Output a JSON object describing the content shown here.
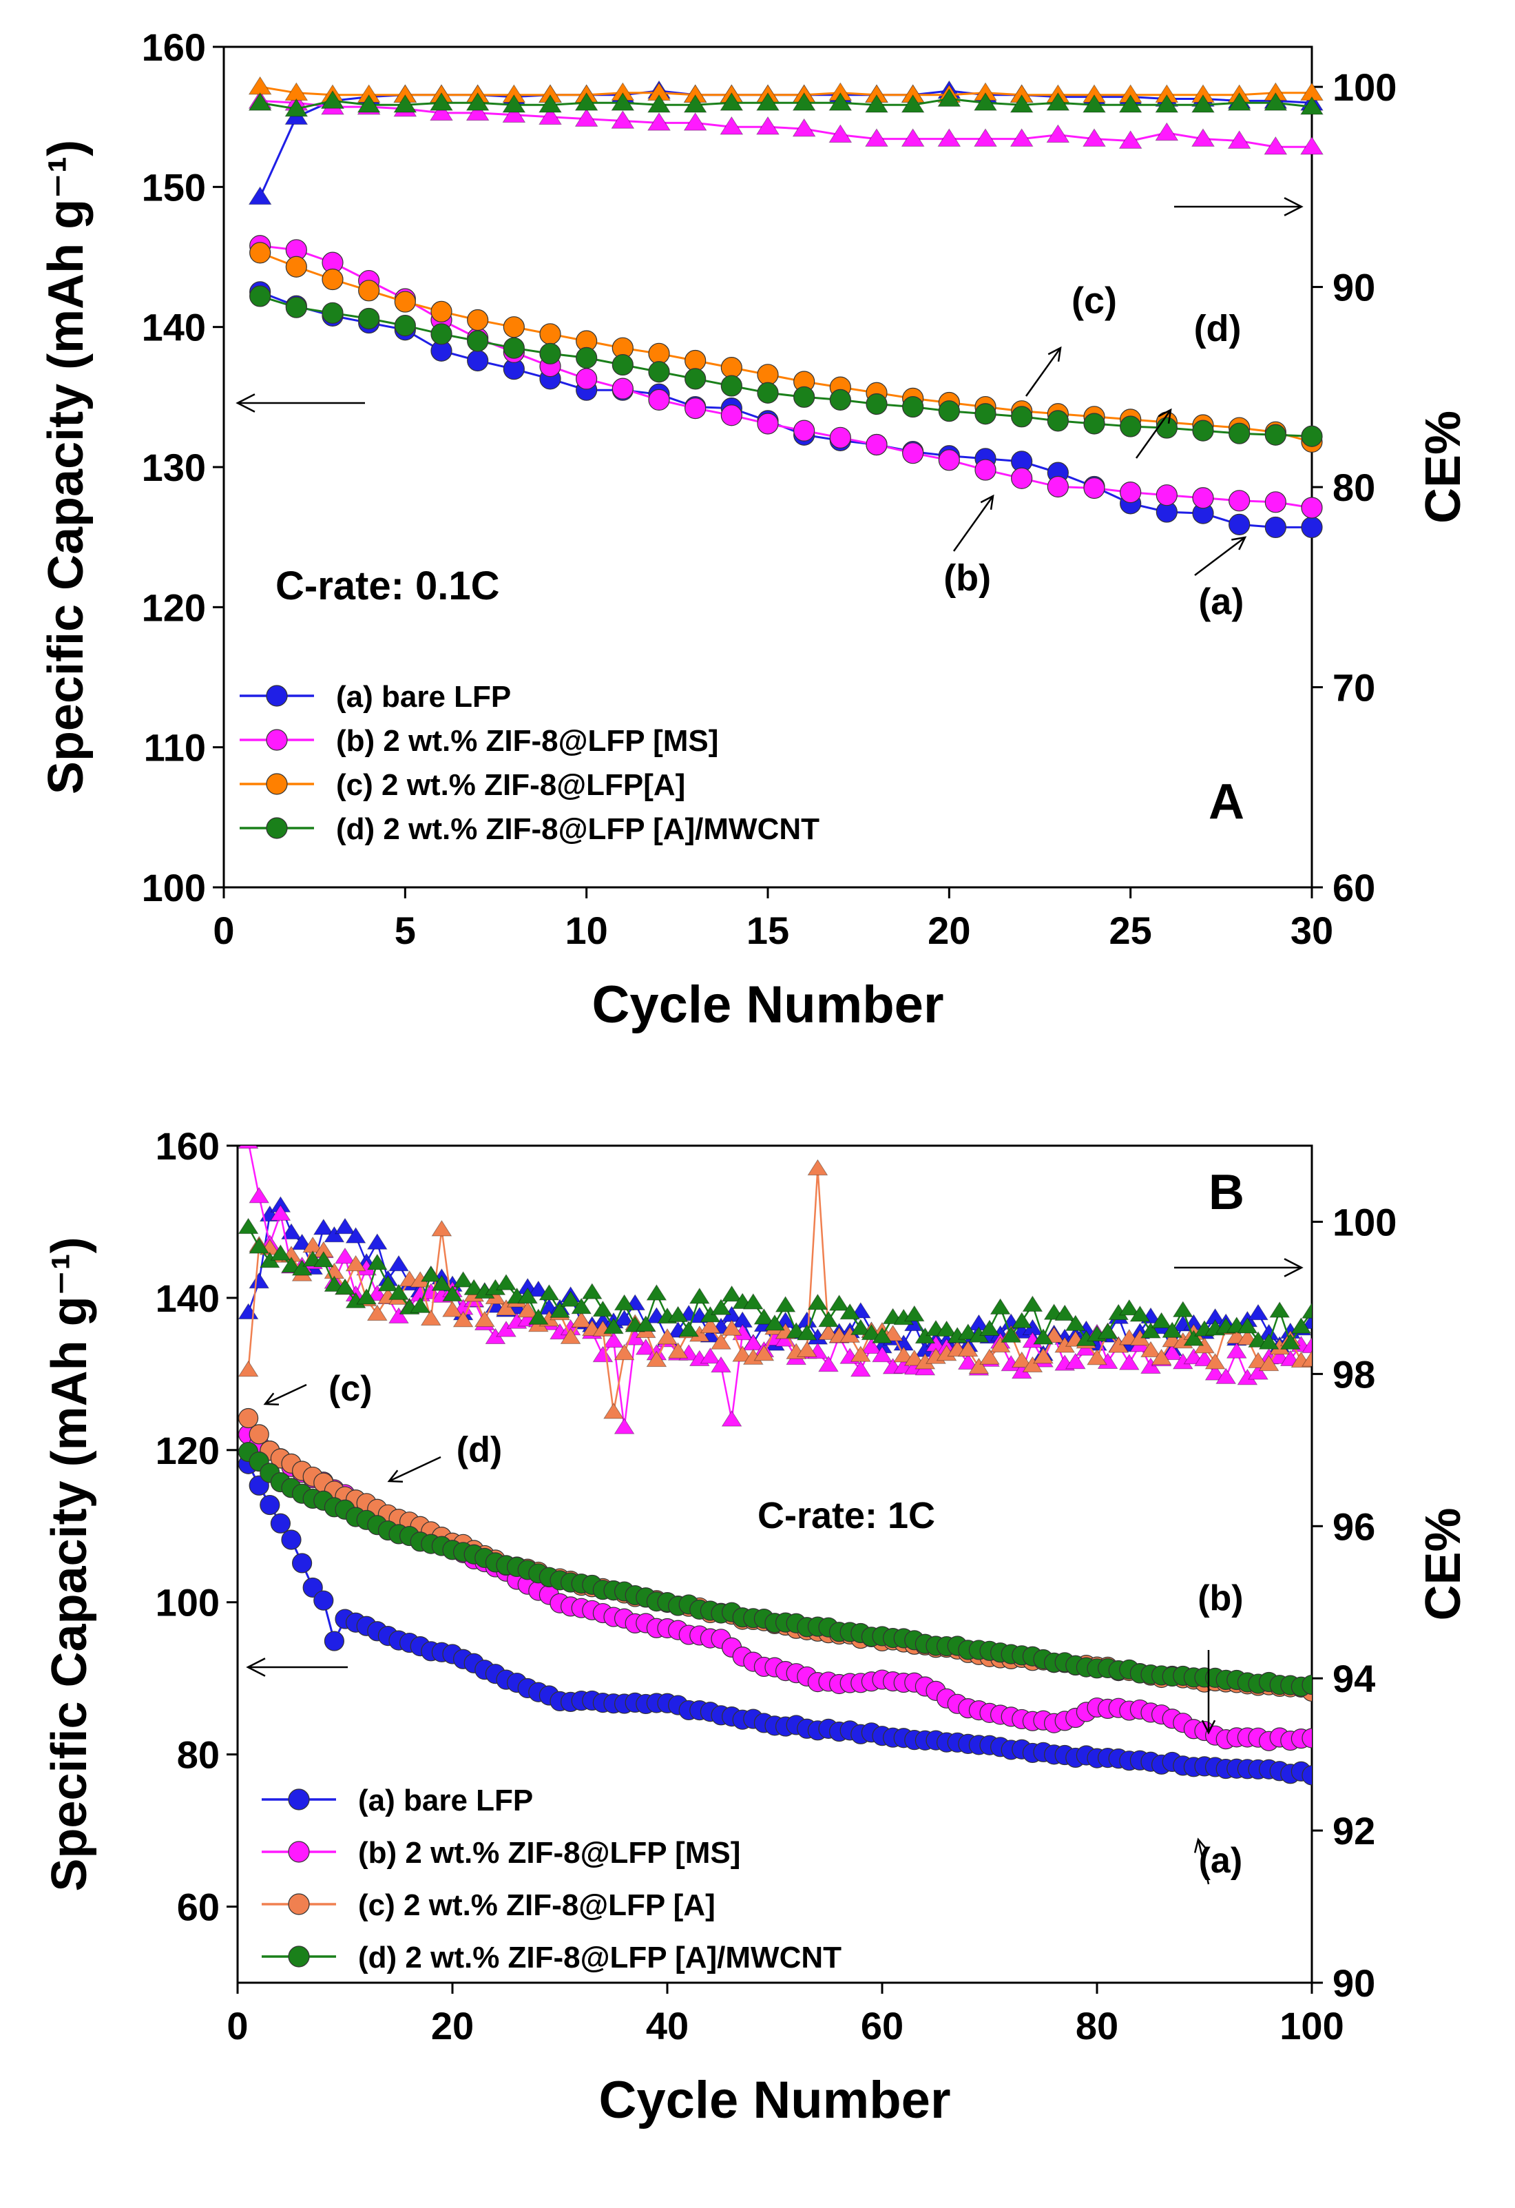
{
  "chart_data": [
    {
      "type": "line",
      "panel_label": "A",
      "annotation_rate": "C-rate: 0.1C",
      "xlabel": "Cycle Number",
      "ylabel": "Specific Capacity (mAh g⁻¹)",
      "y2label": "CE%",
      "xlim": [
        0,
        30
      ],
      "xticks": [
        0,
        5,
        10,
        15,
        20,
        25,
        30
      ],
      "ylim": [
        100,
        160
      ],
      "yticks": [
        100,
        110,
        120,
        130,
        140,
        150,
        160
      ],
      "y2lim": [
        60,
        102
      ],
      "y2ticks": [
        60,
        70,
        80,
        90,
        100
      ],
      "curve_labels": [
        {
          "text": "(a)",
          "x": 27.5,
          "y": 119.5
        },
        {
          "text": "(b)",
          "x": 20.5,
          "y": 121.2
        },
        {
          "text": "(c)",
          "x": 24.0,
          "y": 141.0
        },
        {
          "text": "(d)",
          "x": 27.4,
          "y": 139.0
        }
      ],
      "series": [
        {
          "name": "(a) bare LFP",
          "color": "#1f1fe6",
          "capacity": [
            142.5,
            141.5,
            140.8,
            140.3,
            139.8,
            138.3,
            137.6,
            137.0,
            136.3,
            135.5,
            135.5,
            135.2,
            134.3,
            134.2,
            133.3,
            132.3,
            131.9,
            131.6,
            131.1,
            130.8,
            130.6,
            130.4,
            129.6,
            128.6,
            127.4,
            126.8,
            126.7,
            125.9,
            125.7,
            125.7
          ],
          "ce": [
            94.5,
            98.5,
            99.3,
            99.5,
            99.6,
            99.6,
            99.6,
            99.5,
            99.6,
            99.6,
            99.6,
            99.8,
            99.6,
            99.6,
            99.6,
            99.6,
            99.6,
            99.6,
            99.6,
            99.8,
            99.6,
            99.6,
            99.5,
            99.5,
            99.5,
            99.4,
            99.4,
            99.3,
            99.3,
            99.2
          ]
        },
        {
          "name": "(b) 2 wt.% ZIF-8@LFP [MS]",
          "color": "#ff1aff",
          "capacity": [
            145.8,
            145.5,
            144.6,
            143.3,
            142.0,
            140.5,
            139.2,
            138.2,
            137.2,
            136.3,
            135.6,
            134.8,
            134.2,
            133.7,
            133.1,
            132.6,
            132.1,
            131.6,
            131.0,
            130.5,
            129.8,
            129.2,
            128.6,
            128.5,
            128.2,
            128.0,
            127.8,
            127.6,
            127.5,
            127.1
          ],
          "ce": [
            99.3,
            99.2,
            99.0,
            99.0,
            98.9,
            98.7,
            98.7,
            98.6,
            98.5,
            98.4,
            98.3,
            98.2,
            98.2,
            98.0,
            98.0,
            97.9,
            97.6,
            97.4,
            97.4,
            97.4,
            97.4,
            97.4,
            97.6,
            97.4,
            97.3,
            97.7,
            97.4,
            97.3,
            97.0,
            97.0
          ]
        },
        {
          "name": "(c) 2 wt.% ZIF-8@LFP[A]",
          "color": "#ff8000",
          "capacity": [
            145.3,
            144.3,
            143.4,
            142.6,
            141.8,
            141.1,
            140.5,
            140.0,
            139.5,
            139.0,
            138.5,
            138.1,
            137.6,
            137.1,
            136.6,
            136.1,
            135.7,
            135.3,
            134.9,
            134.6,
            134.3,
            134.0,
            133.8,
            133.6,
            133.4,
            133.2,
            133.0,
            132.8,
            132.5,
            131.8
          ],
          "ce": [
            100.0,
            99.7,
            99.6,
            99.6,
            99.6,
            99.6,
            99.6,
            99.6,
            99.6,
            99.6,
            99.7,
            99.7,
            99.6,
            99.6,
            99.6,
            99.6,
            99.7,
            99.6,
            99.6,
            99.6,
            99.7,
            99.6,
            99.6,
            99.6,
            99.6,
            99.6,
            99.6,
            99.6,
            99.7,
            99.7
          ]
        },
        {
          "name": "(d) 2 wt.% ZIF-8@LFP [A]/MWCNT",
          "color": "#1a801a",
          "capacity": [
            142.2,
            141.4,
            141.0,
            140.6,
            140.1,
            139.5,
            139.0,
            138.5,
            138.1,
            137.8,
            137.3,
            136.8,
            136.3,
            135.8,
            135.3,
            135.0,
            134.8,
            134.5,
            134.3,
            134.0,
            133.8,
            133.6,
            133.3,
            133.1,
            132.9,
            132.8,
            132.6,
            132.4,
            132.3,
            132.2
          ],
          "ce": [
            99.2,
            98.9,
            99.3,
            99.1,
            99.1,
            99.2,
            99.2,
            99.1,
            99.1,
            99.2,
            99.2,
            99.1,
            99.1,
            99.2,
            99.2,
            99.2,
            99.2,
            99.1,
            99.1,
            99.4,
            99.2,
            99.1,
            99.2,
            99.1,
            99.1,
            99.1,
            99.1,
            99.2,
            99.2,
            99.0
          ]
        }
      ]
    },
    {
      "type": "line",
      "panel_label": "B",
      "annotation_rate": "C-rate: 1C",
      "xlabel": "Cycle Number",
      "ylabel": "Specific Capacity (mAh g⁻¹)",
      "y2label": "CE%",
      "xlim": [
        0,
        100
      ],
      "xticks": [
        0,
        20,
        40,
        60,
        80,
        100
      ],
      "ylim": [
        50,
        160
      ],
      "yticks": [
        60,
        80,
        100,
        120,
        140,
        160
      ],
      "y2lim": [
        90,
        101
      ],
      "y2ticks": [
        90,
        92,
        94,
        96,
        98,
        100
      ],
      "curve_labels": [
        {
          "text": "(a)",
          "x": 91.5,
          "y": 64.5
        },
        {
          "text": "(b)",
          "x": 91.5,
          "y": 99.0
        },
        {
          "text": "(c)",
          "x": 10.5,
          "y": 126.5
        },
        {
          "text": "(d)",
          "x": 22.5,
          "y": 118.5
        }
      ],
      "series": [
        {
          "name": "(a) bare LFP",
          "color": "#1f1fe6"
        },
        {
          "name": "(b) 2 wt.% ZIF-8@LFP [MS]",
          "color": "#ff1aff"
        },
        {
          "name": "(c) 2 wt.% ZIF-8@LFP [A]",
          "color": "#f08050"
        },
        {
          "name": "(d) 2 wt.% ZIF-8@LFP [A]/MWCNT",
          "color": "#1a801a"
        }
      ],
      "capacity_knots": {
        "(a)": [
          [
            1,
            118
          ],
          [
            3,
            113
          ],
          [
            5,
            108
          ],
          [
            7,
            102
          ],
          [
            8,
            100
          ],
          [
            9,
            95
          ],
          [
            10,
            98
          ],
          [
            15,
            95
          ],
          [
            20,
            93
          ],
          [
            25,
            90
          ],
          [
            30,
            87
          ],
          [
            40,
            86.5
          ],
          [
            50,
            84
          ],
          [
            60,
            82.5
          ],
          [
            70,
            81
          ],
          [
            80,
            79.5
          ],
          [
            90,
            78.5
          ],
          [
            100,
            77.5
          ]
        ],
        "(b)": [
          [
            1,
            122
          ],
          [
            5,
            118
          ],
          [
            10,
            114
          ],
          [
            15,
            110
          ],
          [
            20,
            107
          ],
          [
            25,
            104
          ],
          [
            30,
            100
          ],
          [
            35,
            98
          ],
          [
            40,
            96.5
          ],
          [
            45,
            95
          ],
          [
            48,
            92
          ],
          [
            52,
            90.5
          ],
          [
            56,
            89
          ],
          [
            60,
            90
          ],
          [
            64,
            89
          ],
          [
            68,
            86
          ],
          [
            72,
            85
          ],
          [
            76,
            84
          ],
          [
            80,
            86
          ],
          [
            84,
            86
          ],
          [
            88,
            84
          ],
          [
            92,
            82
          ],
          [
            96,
            82
          ],
          [
            100,
            82
          ]
        ],
        "(c)": [
          [
            1,
            124
          ],
          [
            3,
            120
          ],
          [
            5,
            118
          ],
          [
            10,
            114
          ],
          [
            15,
            111
          ],
          [
            20,
            108
          ],
          [
            25,
            105
          ],
          [
            30,
            103
          ],
          [
            40,
            100
          ],
          [
            50,
            97
          ],
          [
            60,
            95
          ],
          [
            70,
            93
          ],
          [
            80,
            91.5
          ],
          [
            90,
            89.5
          ],
          [
            100,
            88.5
          ]
        ],
        "(d)": [
          [
            1,
            120
          ],
          [
            3,
            117
          ],
          [
            5,
            115
          ],
          [
            10,
            112
          ],
          [
            15,
            109
          ],
          [
            20,
            107
          ],
          [
            25,
            105
          ],
          [
            30,
            103
          ],
          [
            40,
            100
          ],
          [
            50,
            97.5
          ],
          [
            60,
            95.5
          ],
          [
            70,
            93.5
          ],
          [
            80,
            91.5
          ],
          [
            90,
            90
          ],
          [
            100,
            89
          ]
        ]
      },
      "ce_knots": {
        "(a)": [
          [
            1,
            98.7
          ],
          [
            3,
            100.0
          ],
          [
            6,
            99.6
          ],
          [
            10,
            99.7
          ],
          [
            15,
            99.4
          ],
          [
            20,
            99.0
          ],
          [
            30,
            98.9
          ],
          [
            40,
            98.6
          ],
          [
            50,
            98.6
          ],
          [
            60,
            98.6
          ],
          [
            70,
            98.5
          ],
          [
            80,
            98.5
          ],
          [
            90,
            98.6
          ],
          [
            100,
            98.5
          ]
        ],
        "(b)": [
          [
            1,
            101
          ],
          [
            2,
            100.2
          ],
          [
            4,
            99.8
          ],
          [
            8,
            99.4
          ],
          [
            15,
            99.0
          ],
          [
            25,
            98.7
          ],
          [
            35,
            98.4
          ],
          [
            45,
            98.3
          ],
          [
            60,
            98.3
          ],
          [
            70,
            98.2
          ],
          [
            80,
            98.3
          ],
          [
            90,
            98.1
          ],
          [
            100,
            98.3
          ]
        ],
        "(c)": [
          [
            1,
            98.0
          ],
          [
            2,
            99.8
          ],
          [
            5,
            99.5
          ],
          [
            10,
            99.2
          ],
          [
            20,
            98.9
          ],
          [
            30,
            98.6
          ],
          [
            40,
            98.4
          ],
          [
            50,
            98.4
          ],
          [
            60,
            98.4
          ],
          [
            70,
            98.3
          ],
          [
            80,
            98.4
          ],
          [
            90,
            98.4
          ],
          [
            100,
            98.2
          ]
        ],
        "(d)": [
          [
            1,
            99.6
          ],
          [
            5,
            99.4
          ],
          [
            10,
            99.3
          ],
          [
            20,
            99.0
          ],
          [
            30,
            98.9
          ],
          [
            40,
            98.8
          ],
          [
            50,
            98.8
          ],
          [
            60,
            98.7
          ],
          [
            70,
            98.7
          ],
          [
            80,
            98.7
          ],
          [
            90,
            98.7
          ],
          [
            100,
            98.6
          ]
        ]
      },
      "ce_spikes": [
        {
          "series": "(c)",
          "x": 54,
          "y": 100.7
        },
        {
          "series": "(b)",
          "x": 36,
          "y": 97.3
        },
        {
          "series": "(c)",
          "x": 35,
          "y": 97.5
        },
        {
          "series": "(b)",
          "x": 46,
          "y": 97.4
        },
        {
          "series": "(c)",
          "x": 19,
          "y": 99.9
        }
      ]
    }
  ]
}
